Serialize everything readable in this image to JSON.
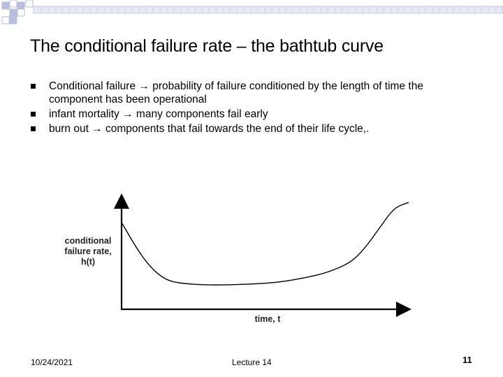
{
  "slide": {
    "title": "The conditional failure rate – the bathtub curve",
    "bullets": [
      {
        "lead": "Conditional failure",
        "arrow": "→",
        "text": "probability of failure conditioned by the length of time the component has been operational"
      },
      {
        "lead": "infant mortality",
        "arrow": "→",
        "text": "many components fail early"
      },
      {
        "lead": "burn out",
        "arrow": "→",
        "text": "components that fail towards the end of their life cycle,."
      }
    ]
  },
  "chart_data": {
    "type": "line",
    "title": "",
    "xlabel": "time, t",
    "ylabel_lines": [
      "conditional",
      "failure rate,",
      "h(t)"
    ],
    "ticks": "none",
    "grid": false,
    "series": [
      {
        "x": [
          0,
          0.05,
          0.1,
          0.15,
          0.2,
          0.3,
          0.45,
          0.55,
          0.65,
          0.72,
          0.8,
          0.85,
          0.9,
          0.95,
          1.0
        ],
        "y": [
          0.85,
          0.6,
          0.4,
          0.28,
          0.24,
          0.22,
          0.23,
          0.25,
          0.3,
          0.35,
          0.45,
          0.6,
          0.8,
          1.0,
          1.05
        ]
      }
    ]
  },
  "footer": {
    "date": "10/24/2021",
    "center": "Lecture 14",
    "page": "11"
  }
}
